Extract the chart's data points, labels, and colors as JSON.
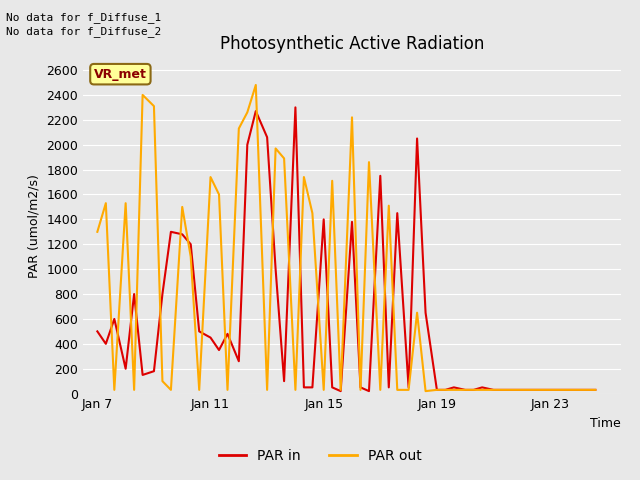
{
  "title": "Photosynthetic Active Radiation",
  "ylabel": "PAR (umol/m2/s)",
  "xlabel": "Time",
  "background_color": "#e8e8e8",
  "plot_bg_color": "#e8e8e8",
  "text_top_left": [
    "No data for f_Diffuse_1",
    "No data for f_Diffuse_2"
  ],
  "legend_box_label": "VR_met",
  "legend_box_color": "#ffff99",
  "legend_box_border": "#8B6914",
  "ylim": [
    0,
    2700
  ],
  "yticks": [
    0,
    200,
    400,
    600,
    800,
    1000,
    1200,
    1400,
    1600,
    1800,
    2000,
    2200,
    2400,
    2600
  ],
  "xtick_labels": [
    "Jan 7",
    "Jan 11",
    "Jan 15",
    "Jan 19",
    "Jan 23"
  ],
  "xtick_positions": [
    7,
    11,
    15,
    19,
    23
  ],
  "xlim": [
    6.5,
    25.5
  ],
  "color_par_in": "#dd0000",
  "color_par_out": "#ffaa00",
  "line_width": 1.5,
  "par_in_x": [
    7.0,
    7.3,
    7.6,
    8.0,
    8.3,
    8.6,
    9.0,
    9.3,
    9.6,
    10.0,
    10.3,
    10.6,
    11.0,
    11.3,
    11.6,
    12.0,
    12.3,
    12.6,
    13.0,
    13.3,
    13.6,
    14.0,
    14.3,
    14.6,
    15.0,
    15.3,
    15.6,
    16.0,
    16.3,
    16.6,
    17.0,
    17.3,
    17.6,
    18.0,
    18.3,
    18.6,
    19.0,
    19.3,
    19.6,
    20.0,
    20.3,
    20.6,
    21.0,
    21.3,
    21.6,
    22.0,
    22.3,
    22.6,
    23.0,
    23.3,
    23.6,
    24.0,
    24.3,
    24.6
  ],
  "par_in_y": [
    500,
    400,
    600,
    200,
    800,
    150,
    180,
    800,
    1300,
    1280,
    1200,
    500,
    450,
    350,
    480,
    260,
    2000,
    2270,
    2060,
    1000,
    100,
    2300,
    50,
    50,
    1400,
    50,
    20,
    1380,
    50,
    20,
    1750,
    50,
    1450,
    50,
    2050,
    650,
    30,
    30,
    50,
    30,
    30,
    50,
    30,
    30,
    30,
    30,
    30,
    30,
    30,
    30,
    30,
    30,
    30,
    30
  ],
  "par_out_x": [
    7.0,
    7.3,
    7.6,
    8.0,
    8.3,
    8.6,
    9.0,
    9.3,
    9.6,
    10.0,
    10.3,
    10.6,
    11.0,
    11.3,
    11.6,
    12.0,
    12.3,
    12.6,
    13.0,
    13.3,
    13.6,
    14.0,
    14.3,
    14.6,
    15.0,
    15.3,
    15.6,
    16.0,
    16.3,
    16.6,
    17.0,
    17.3,
    17.6,
    18.0,
    18.3,
    18.6,
    19.0,
    19.3,
    19.6,
    20.0,
    20.3,
    20.6,
    21.0,
    21.3,
    21.6,
    22.0,
    22.3,
    22.6,
    23.0,
    23.3,
    23.6,
    24.0,
    24.3,
    24.6
  ],
  "par_out_y": [
    1300,
    1530,
    30,
    1530,
    30,
    2400,
    2310,
    100,
    30,
    1500,
    1100,
    30,
    1740,
    1600,
    30,
    2130,
    2260,
    2480,
    30,
    1970,
    1890,
    30,
    1740,
    1450,
    30,
    1710,
    30,
    2220,
    30,
    1860,
    30,
    1510,
    30,
    30,
    650,
    20,
    30,
    30,
    30,
    30,
    30,
    30,
    30,
    30,
    30,
    30,
    30,
    30,
    30,
    30,
    30,
    30,
    30,
    30
  ]
}
